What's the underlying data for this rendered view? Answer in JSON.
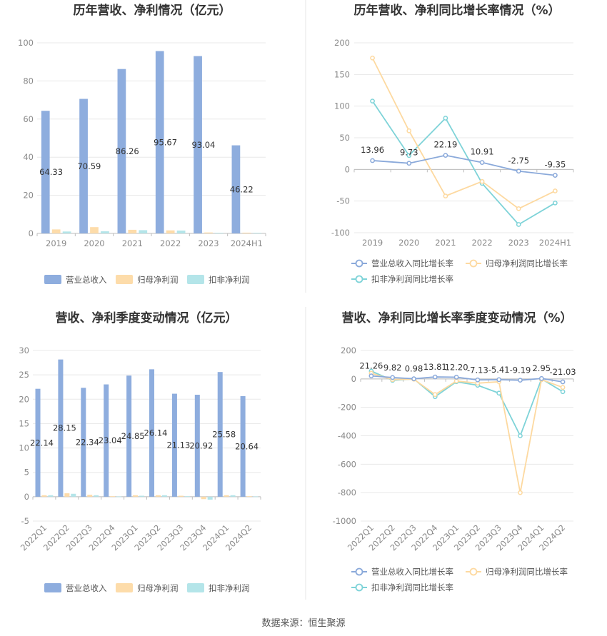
{
  "colors": {
    "revenue": "#8eadde",
    "net_profit": "#fddcaa",
    "deducted_profit": "#b4e5e9",
    "revenue_line": "#8aa9da",
    "net_line": "#fdd9a0",
    "deducted_line": "#7ed3d8"
  },
  "source": "数据来源：恒生聚源",
  "chart_data": [
    {
      "type": "bar",
      "title": "历年营收、净利情况（亿元）",
      "categories": [
        "2019",
        "2020",
        "2021",
        "2022",
        "2023",
        "2024H1"
      ],
      "ylim": [
        0,
        100
      ],
      "yticks": [
        0,
        20,
        40,
        60,
        80,
        100
      ],
      "series": [
        {
          "name": "营业总收入",
          "values": [
            64.33,
            70.59,
            86.26,
            95.67,
            93.04,
            46.22
          ],
          "labels": [
            "64.33",
            "70.59",
            "86.26",
            "95.67",
            "93.04",
            "46.22"
          ]
        },
        {
          "name": "归母净利润",
          "values": [
            2.1,
            3.3,
            1.9,
            1.6,
            0.5,
            0.4
          ]
        },
        {
          "name": "扣非净利润",
          "values": [
            1.0,
            1.1,
            1.7,
            1.5,
            0.3,
            0.3
          ]
        }
      ],
      "legend": "bottom",
      "grid": true
    },
    {
      "type": "line",
      "title": "历年营收、净利同比增长率情况（%）",
      "categories": [
        "2019",
        "2020",
        "2021",
        "2022",
        "2023",
        "2024H1"
      ],
      "ylim": [
        -100,
        200
      ],
      "yticks": [
        -100,
        -50,
        0,
        50,
        100,
        150,
        200
      ],
      "series": [
        {
          "name": "营业总收入同比增长率",
          "values": [
            13.96,
            9.73,
            22.19,
            10.91,
            -2.75,
            -9.35
          ],
          "labels": [
            "13.96",
            "9.73",
            "22.19",
            "10.91",
            "-2.75",
            "-9.35"
          ]
        },
        {
          "name": "归母净利润同比增长率",
          "values": [
            176,
            61,
            -42,
            -19,
            -62,
            -34
          ]
        },
        {
          "name": "扣非净利润同比增长率",
          "values": [
            108,
            22,
            81,
            -22,
            -87,
            -53
          ]
        }
      ],
      "legend": "bottom",
      "grid": true
    },
    {
      "type": "bar",
      "title": "营收、净利季度变动情况（亿元）",
      "categories": [
        "2022Q1",
        "2022Q2",
        "2022Q3",
        "2022Q4",
        "2023Q1",
        "2023Q2",
        "2023Q3",
        "2023Q4",
        "2024Q1",
        "2024Q2"
      ],
      "ylim": [
        -5,
        30
      ],
      "yticks": [
        -5,
        0,
        5,
        10,
        15,
        20,
        25,
        30
      ],
      "series": [
        {
          "name": "营业总收入",
          "values": [
            22.14,
            28.15,
            22.34,
            23.04,
            24.85,
            26.14,
            21.13,
            20.92,
            25.58,
            20.64
          ],
          "labels": [
            "22.14",
            "28.15",
            "22.34",
            "23.04",
            "24.85",
            "26.14",
            "21.13",
            "20.92",
            "25.58",
            "20.64"
          ]
        },
        {
          "name": "归母净利润",
          "values": [
            0.3,
            0.7,
            0.4,
            0.1,
            0.3,
            0.3,
            0.2,
            -0.5,
            0.3,
            0.1
          ]
        },
        {
          "name": "扣非净利润",
          "values": [
            0.3,
            0.6,
            0.3,
            0.05,
            0.2,
            0.3,
            0.1,
            -0.6,
            0.3,
            0.05
          ]
        }
      ],
      "legend": "bottom",
      "grid": true
    },
    {
      "type": "line",
      "title": "营收、净利同比增长率季度变动情况（%）",
      "categories": [
        "2022Q1",
        "2022Q2",
        "2022Q3",
        "2022Q4",
        "2023Q1",
        "2023Q2",
        "2023Q3",
        "2023Q4",
        "2024Q1",
        "2024Q2"
      ],
      "ylim": [
        -1000,
        200
      ],
      "yticks": [
        -1000,
        -800,
        -600,
        -400,
        -200,
        0,
        200
      ],
      "series": [
        {
          "name": "营业总收入同比增长率",
          "values": [
            21.26,
            9.82,
            0.98,
            13.81,
            12.2,
            -7.13,
            -5.41,
            -9.19,
            2.95,
            -21.03
          ],
          "labels": [
            "21.26",
            "9.82",
            "0.98",
            "13.81",
            "12.20",
            "-7.13",
            "-5.41",
            "-9.19",
            "2.95",
            "-21.03"
          ]
        },
        {
          "name": "归母净利润同比增长率",
          "values": [
            40,
            -5,
            -2,
            -110,
            -15,
            -30,
            -20,
            -800,
            -5,
            -60
          ]
        },
        {
          "name": "扣非净利润同比增长率",
          "values": [
            55,
            -10,
            0,
            -125,
            -20,
            -45,
            -100,
            -400,
            0,
            -90
          ]
        }
      ],
      "legend": "bottom",
      "grid": true
    }
  ]
}
